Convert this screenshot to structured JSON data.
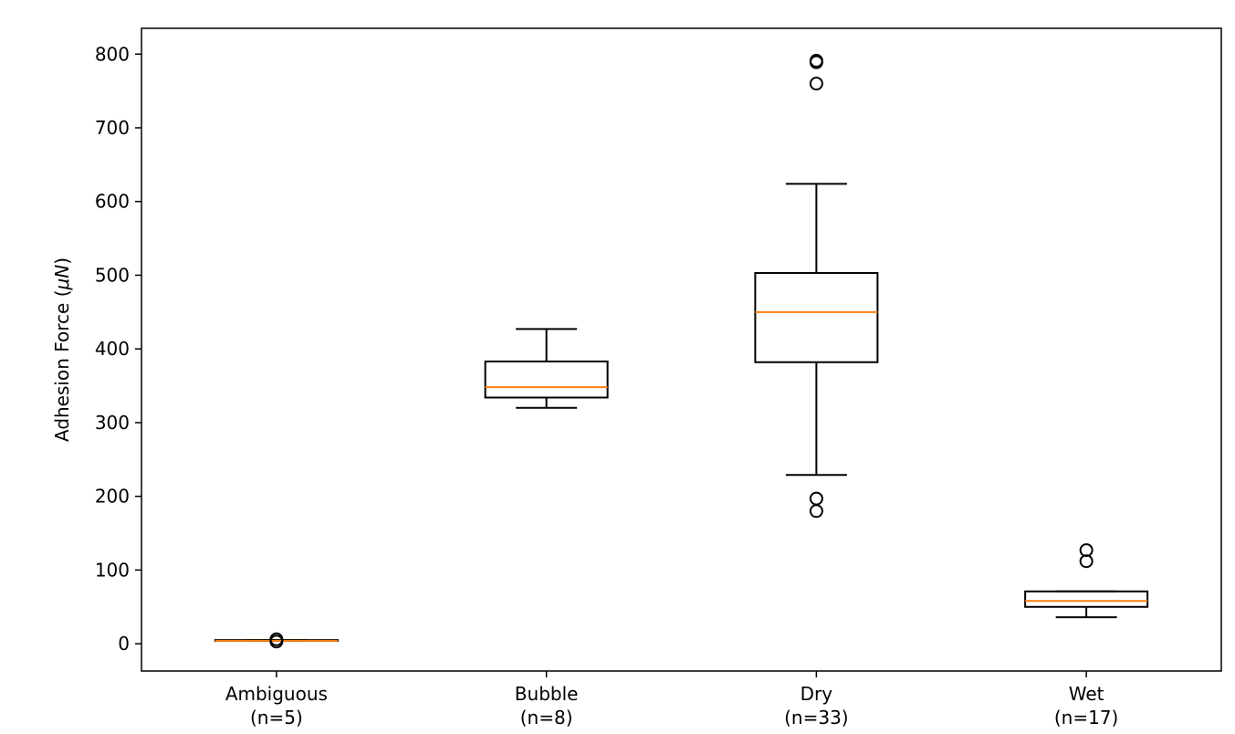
{
  "chart_data": {
    "type": "boxplot",
    "title": "",
    "xlabel": "",
    "ylabel": "Adhesion Force (μN)",
    "ylabel_parts": {
      "prefix": "Adhesion Force (",
      "unit_mu": "μ",
      "unit_n": "N",
      "suffix": ")"
    },
    "ylim": [
      -37,
      835
    ],
    "yticks": [
      0,
      100,
      200,
      300,
      400,
      500,
      600,
      700,
      800
    ],
    "grid": false,
    "colors": {
      "box": "#000000",
      "median": "#ff7f0e",
      "flier": "#000000"
    },
    "categories": [
      "Ambiguous",
      "Bubble",
      "Dry",
      "Wet"
    ],
    "category_counts": [
      "(n=5)",
      "(n=8)",
      "(n=33)",
      "(n=17)"
    ],
    "boxes": [
      {
        "label": "Ambiguous",
        "n_label": "(n=5)",
        "whisker_low": 4,
        "q1": 4,
        "median": 4,
        "q3": 5,
        "whisker_high": 5,
        "outliers": [
          3,
          6
        ]
      },
      {
        "label": "Bubble",
        "n_label": "(n=8)",
        "whisker_low": 320,
        "q1": 334,
        "median": 348,
        "q3": 383,
        "whisker_high": 427,
        "outliers": []
      },
      {
        "label": "Dry",
        "n_label": "(n=33)",
        "whisker_low": 229,
        "q1": 382,
        "median": 450,
        "q3": 503,
        "whisker_high": 624,
        "outliers": [
          180,
          197,
          760,
          789,
          791
        ]
      },
      {
        "label": "Wet",
        "n_label": "(n=17)",
        "whisker_low": 36,
        "q1": 50,
        "median": 58,
        "q3": 71,
        "whisker_high": 71,
        "outliers": [
          112,
          127
        ]
      }
    ]
  }
}
